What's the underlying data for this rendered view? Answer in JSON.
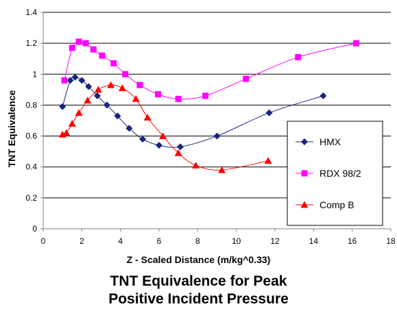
{
  "chart_data": {
    "type": "line",
    "title_lines": [
      "TNT Equivalence for Peak",
      "Positive Incident Pressure"
    ],
    "xlabel": "Z - Scaled Distance (m/kg^0.33)",
    "ylabel": "TNT Equivalence",
    "xlim": [
      0,
      18
    ],
    "ylim": [
      0,
      1.4
    ],
    "xticks": [
      0,
      2,
      4,
      6,
      8,
      10,
      12,
      14,
      16,
      18
    ],
    "yticks": [
      0,
      0.2,
      0.4,
      0.6,
      0.8,
      1,
      1.2,
      1.4
    ],
    "yticklabels": [
      "0",
      "0.2",
      "0.4",
      "0.6",
      "0.8",
      "1",
      "1.2",
      "1.4"
    ],
    "grid": "horizontal",
    "legend_position": "right",
    "series": [
      {
        "name": "HMX",
        "color": "#1a237e",
        "marker": "diamond",
        "x": [
          1.0,
          1.4,
          1.65,
          2.0,
          2.35,
          2.8,
          3.3,
          3.85,
          4.45,
          5.15,
          6.0,
          7.1,
          9.0,
          11.7,
          14.5
        ],
        "y": [
          0.79,
          0.96,
          0.98,
          0.96,
          0.92,
          0.86,
          0.8,
          0.73,
          0.65,
          0.58,
          0.54,
          0.53,
          0.6,
          0.75,
          0.86
        ]
      },
      {
        "name": "RDX 98/2",
        "color": "#ff00ff",
        "marker": "square",
        "x": [
          1.1,
          1.5,
          1.85,
          2.2,
          2.6,
          3.05,
          3.65,
          4.25,
          5.0,
          5.95,
          7.0,
          8.4,
          10.5,
          13.2,
          16.2
        ],
        "y": [
          0.96,
          1.17,
          1.21,
          1.2,
          1.16,
          1.12,
          1.07,
          1.0,
          0.93,
          0.87,
          0.84,
          0.86,
          0.97,
          1.11,
          1.2
        ]
      },
      {
        "name": "Comp B",
        "color": "#ff0000",
        "marker": "triangle",
        "x": [
          1.0,
          1.2,
          1.5,
          1.85,
          2.3,
          2.85,
          3.5,
          4.1,
          4.8,
          5.4,
          6.2,
          7.0,
          7.9,
          9.25,
          11.65
        ],
        "y": [
          0.61,
          0.62,
          0.68,
          0.75,
          0.83,
          0.9,
          0.93,
          0.91,
          0.84,
          0.72,
          0.6,
          0.49,
          0.41,
          0.38,
          0.44
        ]
      }
    ]
  }
}
